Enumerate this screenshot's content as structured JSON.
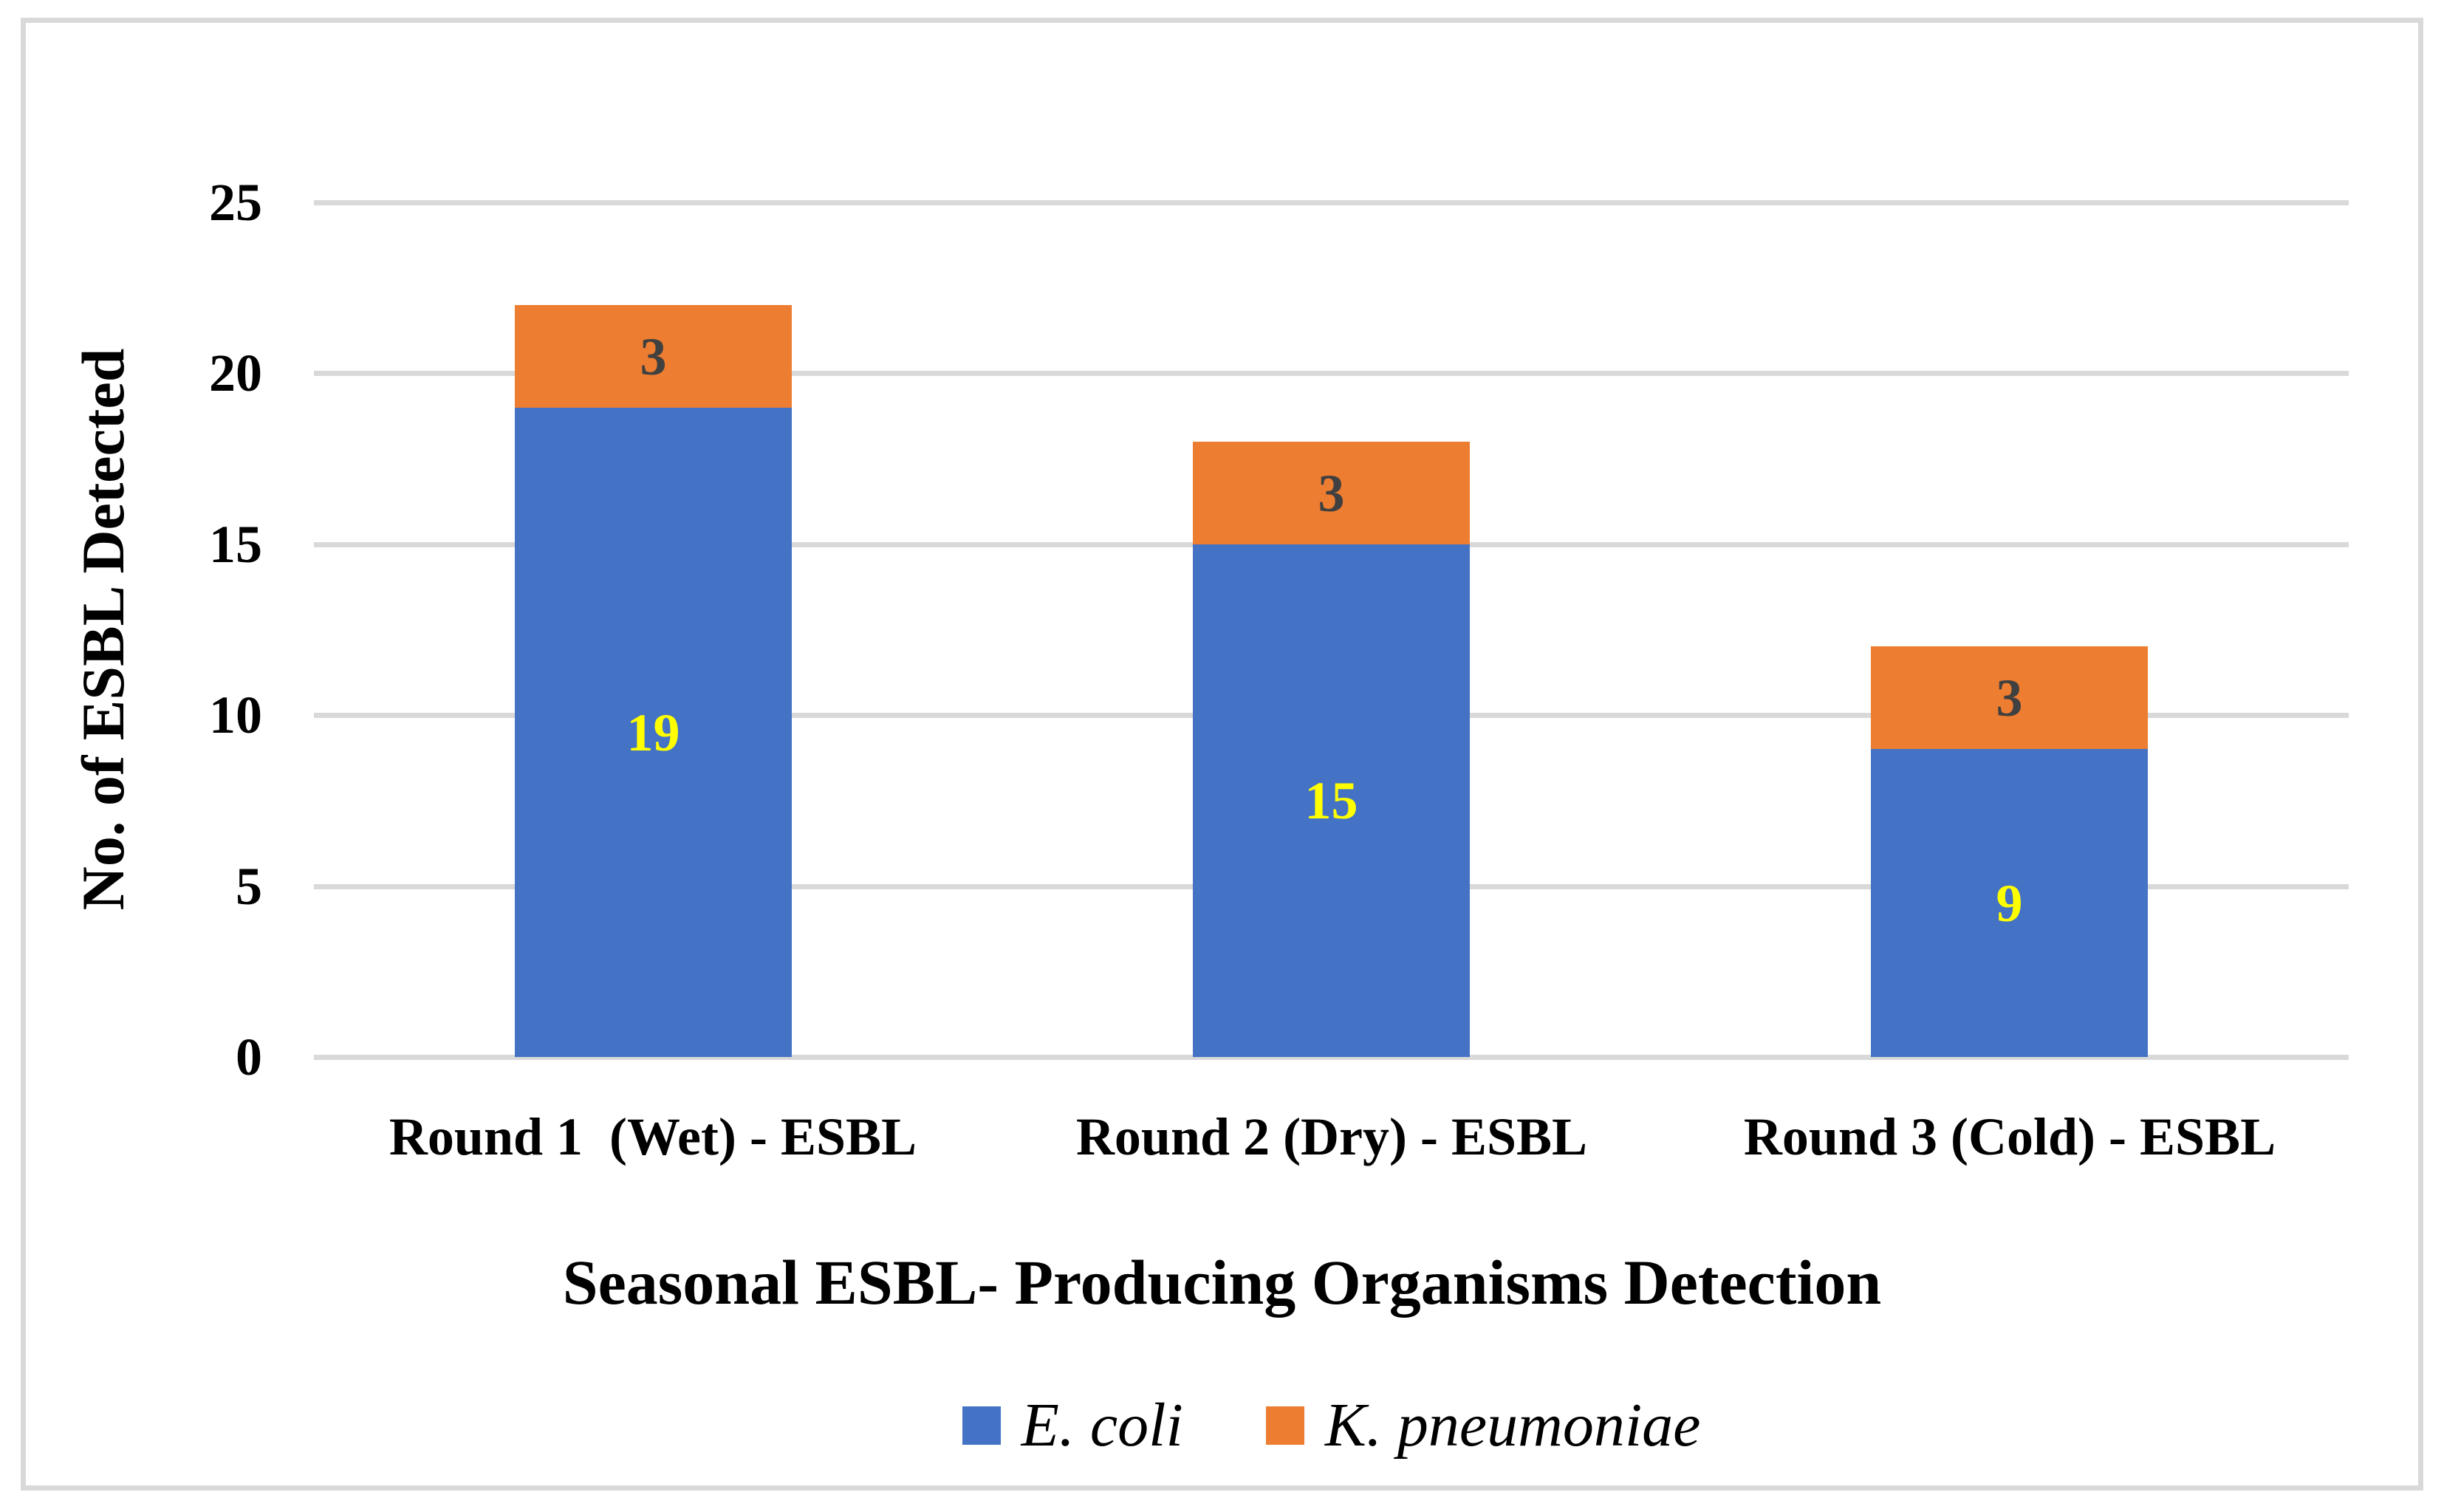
{
  "chart_data": {
    "type": "bar",
    "subtype": "stacked",
    "title": "",
    "xlabel": "Seasonal ESBL- Producing Organisms Detection",
    "ylabel": "No. of ESBL Detected",
    "categories": [
      "Round 1  (Wet) - ESBL",
      "Round 2 (Dry) - ESBL",
      "Round 3 (Cold) - ESBL"
    ],
    "series": [
      {
        "name": "E. coli",
        "color": "#4472C4",
        "values": [
          19,
          15,
          9
        ],
        "label_color": "#FFFF00"
      },
      {
        "name": "K. pneumoniae",
        "color": "#ED7D31",
        "values": [
          3,
          3,
          3
        ],
        "label_color": "#404040"
      }
    ],
    "totals": [
      22,
      18,
      12
    ],
    "ylim": [
      0,
      25
    ],
    "yticks": [
      0,
      5,
      10,
      15,
      20,
      25
    ],
    "grid": "horizontal",
    "gridline_color": "#D9D9D9",
    "frame_color": "#D9D9D9",
    "legend_position": "bottom",
    "background_color": "#FFFFFF"
  }
}
